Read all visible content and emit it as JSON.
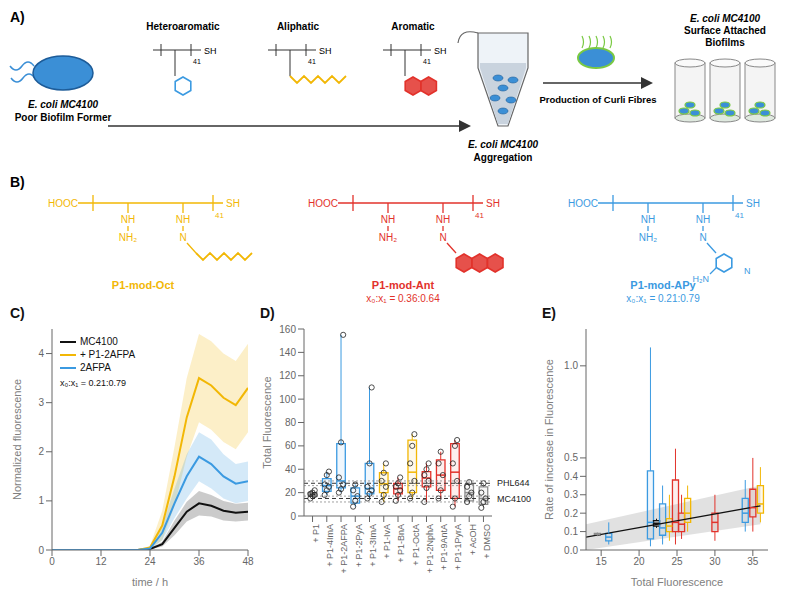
{
  "panel_a": {
    "label": "A)",
    "start": {
      "name": "E. coli MC4100",
      "note": "Poor Biofilm Former"
    },
    "polymers": [
      {
        "class": "Heteroaromatic",
        "color": "#3b9ae1"
      },
      {
        "class": "Aliphatic",
        "color": "#f2b705"
      },
      {
        "class": "Aromatic",
        "color": "#e2322b"
      }
    ],
    "polymer_end": "SH",
    "polymer_repeat": "41",
    "middle": {
      "name": "E. coli MC4100",
      "note": "Aggregation"
    },
    "step": "Production of Curli Fibres",
    "end": {
      "name": "E. coli MC4100",
      "lines": [
        "Surface Attached",
        "Biofilms"
      ]
    }
  },
  "panel_b": {
    "label": "B)",
    "end_left": "HOOC",
    "end_right": "SH",
    "repeat": "41",
    "amide": "NH",
    "amine": "NH₂",
    "imine": "N",
    "polymers": [
      {
        "name": "P1-mod-Oct",
        "color": "#f2b705"
      },
      {
        "name": "P1-mod-Ant",
        "ratio": "x₀:x₁ = 0.36:0.64",
        "color": "#e2322b"
      },
      {
        "name": "P1-mod-APy",
        "ratio": "x₀:x₁ = 0.21:0.79",
        "amino": "H₂N",
        "color": "#3b9ae1"
      }
    ]
  },
  "chart_data": [
    {
      "type": "line",
      "title": "C)",
      "x_label": "time / h",
      "y_label": "Normalized fluorescence",
      "annotations": [
        "x₀:x₁ = 0.21:0.79"
      ],
      "legend": "upper left",
      "x": [
        0,
        3,
        6,
        9,
        12,
        15,
        18,
        21,
        24,
        27,
        30,
        33,
        36,
        39,
        42,
        45,
        48
      ],
      "xlim": [
        0,
        48
      ],
      "xticks": [
        0,
        12,
        24,
        36,
        48
      ],
      "ylim": [
        0,
        4.5
      ],
      "yticks": [
        0,
        1,
        2,
        3,
        4
      ],
      "series": [
        {
          "name": "MC4100",
          "color": "#111111",
          "values": [
            0,
            0,
            0,
            0,
            0,
            0,
            0,
            0,
            0.02,
            0.12,
            0.45,
            0.78,
            0.95,
            0.9,
            0.8,
            0.76,
            0.78
          ],
          "error": [
            0,
            0,
            0,
            0,
            0,
            0,
            0,
            0,
            0.01,
            0.05,
            0.15,
            0.2,
            0.25,
            0.22,
            0.2,
            0.18,
            0.18
          ]
        },
        {
          "name": "+ P1-2AFPA",
          "color": "#f2b705",
          "values": [
            0,
            0,
            0,
            0,
            0,
            0,
            0,
            0,
            0.05,
            0.5,
            1.5,
            2.7,
            3.5,
            3.35,
            3.1,
            2.95,
            3.3
          ],
          "error": [
            0,
            0,
            0,
            0,
            0,
            0,
            0,
            0,
            0.03,
            0.3,
            0.6,
            0.8,
            0.9,
            0.9,
            0.9,
            0.9,
            0.9
          ]
        },
        {
          "name": "2AFPA",
          "color": "#3b9ae1",
          "values": [
            0,
            0,
            0,
            0,
            0,
            0,
            0,
            0,
            0.03,
            0.35,
            0.95,
            1.5,
            1.9,
            1.75,
            1.5,
            1.35,
            1.4
          ],
          "error": [
            0,
            0,
            0,
            0,
            0,
            0,
            0,
            0,
            0.02,
            0.15,
            0.3,
            0.45,
            0.5,
            0.5,
            0.45,
            0.4,
            0.4
          ]
        }
      ]
    },
    {
      "type": "box",
      "title": "D)",
      "y_label": "Total Fluorescence",
      "categories": [
        "+ P1",
        "+ P1-4ImA",
        "+ P1-2AFPA",
        "+ P1-2PyA",
        "+ P1-3ImA",
        "+ P1-IvA",
        "+ P1-BnA",
        "+ P1-OctA",
        "+ P1-2NphA",
        "+ P1-9AntA",
        "+ P1-1PyrA",
        "+ AcOH",
        "+ DMSO"
      ],
      "colors": [
        "#8c8c8c",
        "#3b9ae1",
        "#3b9ae1",
        "#3b9ae1",
        "#3b9ae1",
        "#f2b705",
        "#e2322b",
        "#f2b705",
        "#e2322b",
        "#e2322b",
        "#e2322b",
        "#8c8c8c",
        "#8c8c8c"
      ],
      "values": [
        [
          15,
          17,
          18,
          19,
          20,
          22
        ],
        [
          18,
          22,
          25,
          27,
          35,
          38
        ],
        [
          20,
          23,
          27,
          33,
          63,
          155
        ],
        [
          8,
          13,
          17,
          22,
          27
        ],
        [
          15,
          19,
          22,
          25,
          45,
          110
        ],
        [
          12,
          18,
          25,
          30,
          37,
          45
        ],
        [
          13,
          18,
          22,
          25,
          28,
          33
        ],
        [
          15,
          20,
          30,
          45,
          60,
          70
        ],
        [
          12,
          24,
          30,
          35,
          40,
          45
        ],
        [
          15,
          22,
          35,
          45,
          55
        ],
        [
          8,
          15,
          30,
          45,
          60,
          65
        ],
        [
          12,
          17,
          20,
          25,
          29
        ],
        [
          7,
          12,
          15,
          20,
          28
        ]
      ],
      "boxes": [
        {
          "low": 15,
          "q1": 17,
          "median": 18.5,
          "q3": 20,
          "high": 22
        },
        {
          "low": 18,
          "q1": 21,
          "median": 26,
          "q3": 32,
          "high": 38
        },
        {
          "low": 20,
          "q1": 24,
          "median": 30,
          "q3": 62,
          "high": 155
        },
        {
          "low": 8,
          "q1": 11,
          "median": 17,
          "q3": 24,
          "high": 27
        },
        {
          "low": 15,
          "q1": 19,
          "median": 23.5,
          "q3": 45,
          "high": 110
        },
        {
          "low": 12,
          "q1": 20,
          "median": 27.5,
          "q3": 37,
          "high": 45
        },
        {
          "low": 13,
          "q1": 19,
          "median": 23.5,
          "q3": 28,
          "high": 33
        },
        {
          "low": 15,
          "q1": 20,
          "median": 37.5,
          "q3": 65,
          "high": 70
        },
        {
          "low": 12,
          "q1": 25,
          "median": 32.5,
          "q3": 38,
          "high": 45
        },
        {
          "low": 15,
          "q1": 22,
          "median": 35,
          "q3": 48,
          "high": 55
        },
        {
          "low": 8,
          "q1": 15,
          "median": 37.5,
          "q3": 62,
          "high": 65
        },
        {
          "low": 12,
          "q1": 13,
          "median": 20,
          "q3": 27,
          "high": 29
        },
        {
          "low": 7,
          "q1": 10,
          "median": 15,
          "q3": 25,
          "high": 28
        }
      ],
      "reference_lines": [
        {
          "label": "PHL644",
          "value": 28,
          "range": [
            26,
            30
          ]
        },
        {
          "label": "MC4100",
          "value": 15,
          "range": [
            12,
            17
          ]
        }
      ],
      "ylim": [
        0,
        160
      ],
      "yticks": [
        0,
        20,
        40,
        60,
        80,
        100,
        120,
        140,
        160
      ]
    },
    {
      "type": "box",
      "title": "E)",
      "x_label": "Total Fluorescence",
      "y_label": "Rate of increase in Fluorescence",
      "xlim": [
        13,
        37
      ],
      "xticks": [
        15,
        20,
        25,
        30,
        35
      ],
      "ylim": [
        0,
        1.2
      ],
      "yticks": [
        {
          "value": 0,
          "label": "0.0"
        },
        0.1,
        0.2,
        0.3,
        0.4,
        0.5,
        {
          "value": 1,
          "label": "1.0"
        }
      ],
      "boxes": [
        {
          "x": 14.5,
          "low": 0.075,
          "q1": 0.08,
          "median": 0.085,
          "q3": 0.09,
          "high": 0.095,
          "color": "#8c8c8c"
        },
        {
          "x": 16,
          "low": 0.03,
          "q1": 0.05,
          "median": 0.07,
          "q3": 0.09,
          "high": 0.15,
          "color": "#3b9ae1"
        },
        {
          "x": 21.5,
          "low": 0.02,
          "q1": 0.06,
          "median": 0.15,
          "q3": 0.43,
          "high": 1.1,
          "color": "#3b9ae1"
        },
        {
          "x": 22.3,
          "low": 0.12,
          "q1": 0.13,
          "median": 0.145,
          "q3": 0.16,
          "high": 0.17,
          "color": "#111111"
        },
        {
          "x": 23.1,
          "low": 0.03,
          "q1": 0.08,
          "median": 0.12,
          "q3": 0.25,
          "high": 0.35,
          "color": "#3b9ae1"
        },
        {
          "x": 24,
          "low": 0.05,
          "q1": 0.1,
          "median": 0.13,
          "q3": 0.17,
          "high": 0.3,
          "color": "#f2b705"
        },
        {
          "x": 24.8,
          "low": 0.03,
          "q1": 0.1,
          "median": 0.15,
          "q3": 0.38,
          "high": 0.55,
          "color": "#e2322b"
        },
        {
          "x": 25.6,
          "low": 0.06,
          "q1": 0.1,
          "median": 0.14,
          "q3": 0.2,
          "high": 0.3,
          "color": "#e2322b"
        },
        {
          "x": 26.4,
          "low": 0.1,
          "q1": 0.15,
          "median": 0.2,
          "q3": 0.28,
          "high": 0.35,
          "color": "#f2b705"
        },
        {
          "x": 30,
          "low": 0.05,
          "q1": 0.1,
          "median": 0.15,
          "q3": 0.2,
          "high": 0.3,
          "color": "#e2322b"
        },
        {
          "x": 34,
          "low": 0.1,
          "q1": 0.15,
          "median": 0.2,
          "q3": 0.28,
          "high": 0.38,
          "color": "#3b9ae1"
        },
        {
          "x": 35,
          "low": 0.1,
          "q1": 0.18,
          "median": 0.23,
          "q3": 0.33,
          "high": 0.5,
          "color": "#e2322b"
        },
        {
          "x": 36,
          "low": 0.15,
          "q1": 0.2,
          "median": 0.25,
          "q3": 0.35,
          "high": 0.45,
          "color": "#f2b705"
        }
      ],
      "fit": {
        "x": [
          13,
          36
        ],
        "y": [
          0.07,
          0.24
        ],
        "lower": [
          0,
          0.14
        ],
        "upper": [
          0.14,
          0.35
        ]
      }
    }
  ]
}
